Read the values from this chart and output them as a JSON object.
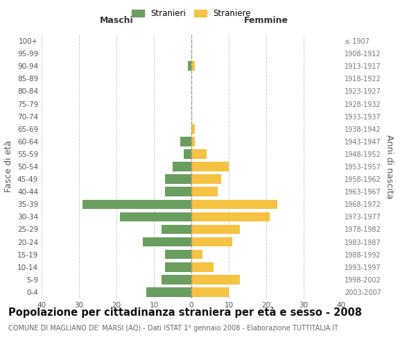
{
  "age_groups": [
    "0-4",
    "5-9",
    "10-14",
    "15-19",
    "20-24",
    "25-29",
    "30-34",
    "35-39",
    "40-44",
    "45-49",
    "50-54",
    "55-59",
    "60-64",
    "65-69",
    "70-74",
    "75-79",
    "80-84",
    "85-89",
    "90-94",
    "95-99",
    "100+"
  ],
  "birth_years": [
    "2003-2007",
    "1998-2002",
    "1993-1997",
    "1988-1992",
    "1983-1987",
    "1978-1982",
    "1973-1977",
    "1968-1972",
    "1963-1967",
    "1958-1962",
    "1953-1957",
    "1948-1952",
    "1943-1947",
    "1938-1942",
    "1933-1937",
    "1928-1932",
    "1923-1927",
    "1918-1922",
    "1913-1917",
    "1908-1912",
    "≤ 1907"
  ],
  "maschi": [
    12,
    8,
    7,
    7,
    13,
    8,
    19,
    29,
    7,
    7,
    5,
    2,
    3,
    0,
    0,
    0,
    0,
    0,
    1,
    0,
    0
  ],
  "femmine": [
    10,
    13,
    6,
    3,
    11,
    13,
    21,
    23,
    7,
    8,
    10,
    4,
    1,
    1,
    0,
    0,
    0,
    0,
    1,
    0,
    0
  ],
  "maschi_color": "#6a9e5e",
  "femmine_color": "#f5c242",
  "background_color": "#ffffff",
  "grid_color": "#cccccc",
  "bar_height": 0.75,
  "xlim": 40,
  "title": "Popolazione per cittadinanza straniera per età e sesso - 2008",
  "subtitle": "COMUNE DI MAGLIANO DE' MARSI (AQ) - Dati ISTAT 1° gennaio 2008 - Elaborazione TUTTITALIA.IT",
  "ylabel_left": "Fasce di età",
  "ylabel_right": "Anni di nascita",
  "xlabel_left": "Maschi",
  "xlabel_right": "Femmine",
  "legend_stranieri": "Stranieri",
  "legend_straniere": "Straniere",
  "title_fontsize": 10.5,
  "subtitle_fontsize": 7.0,
  "tick_fontsize": 7.5,
  "label_fontsize": 9
}
